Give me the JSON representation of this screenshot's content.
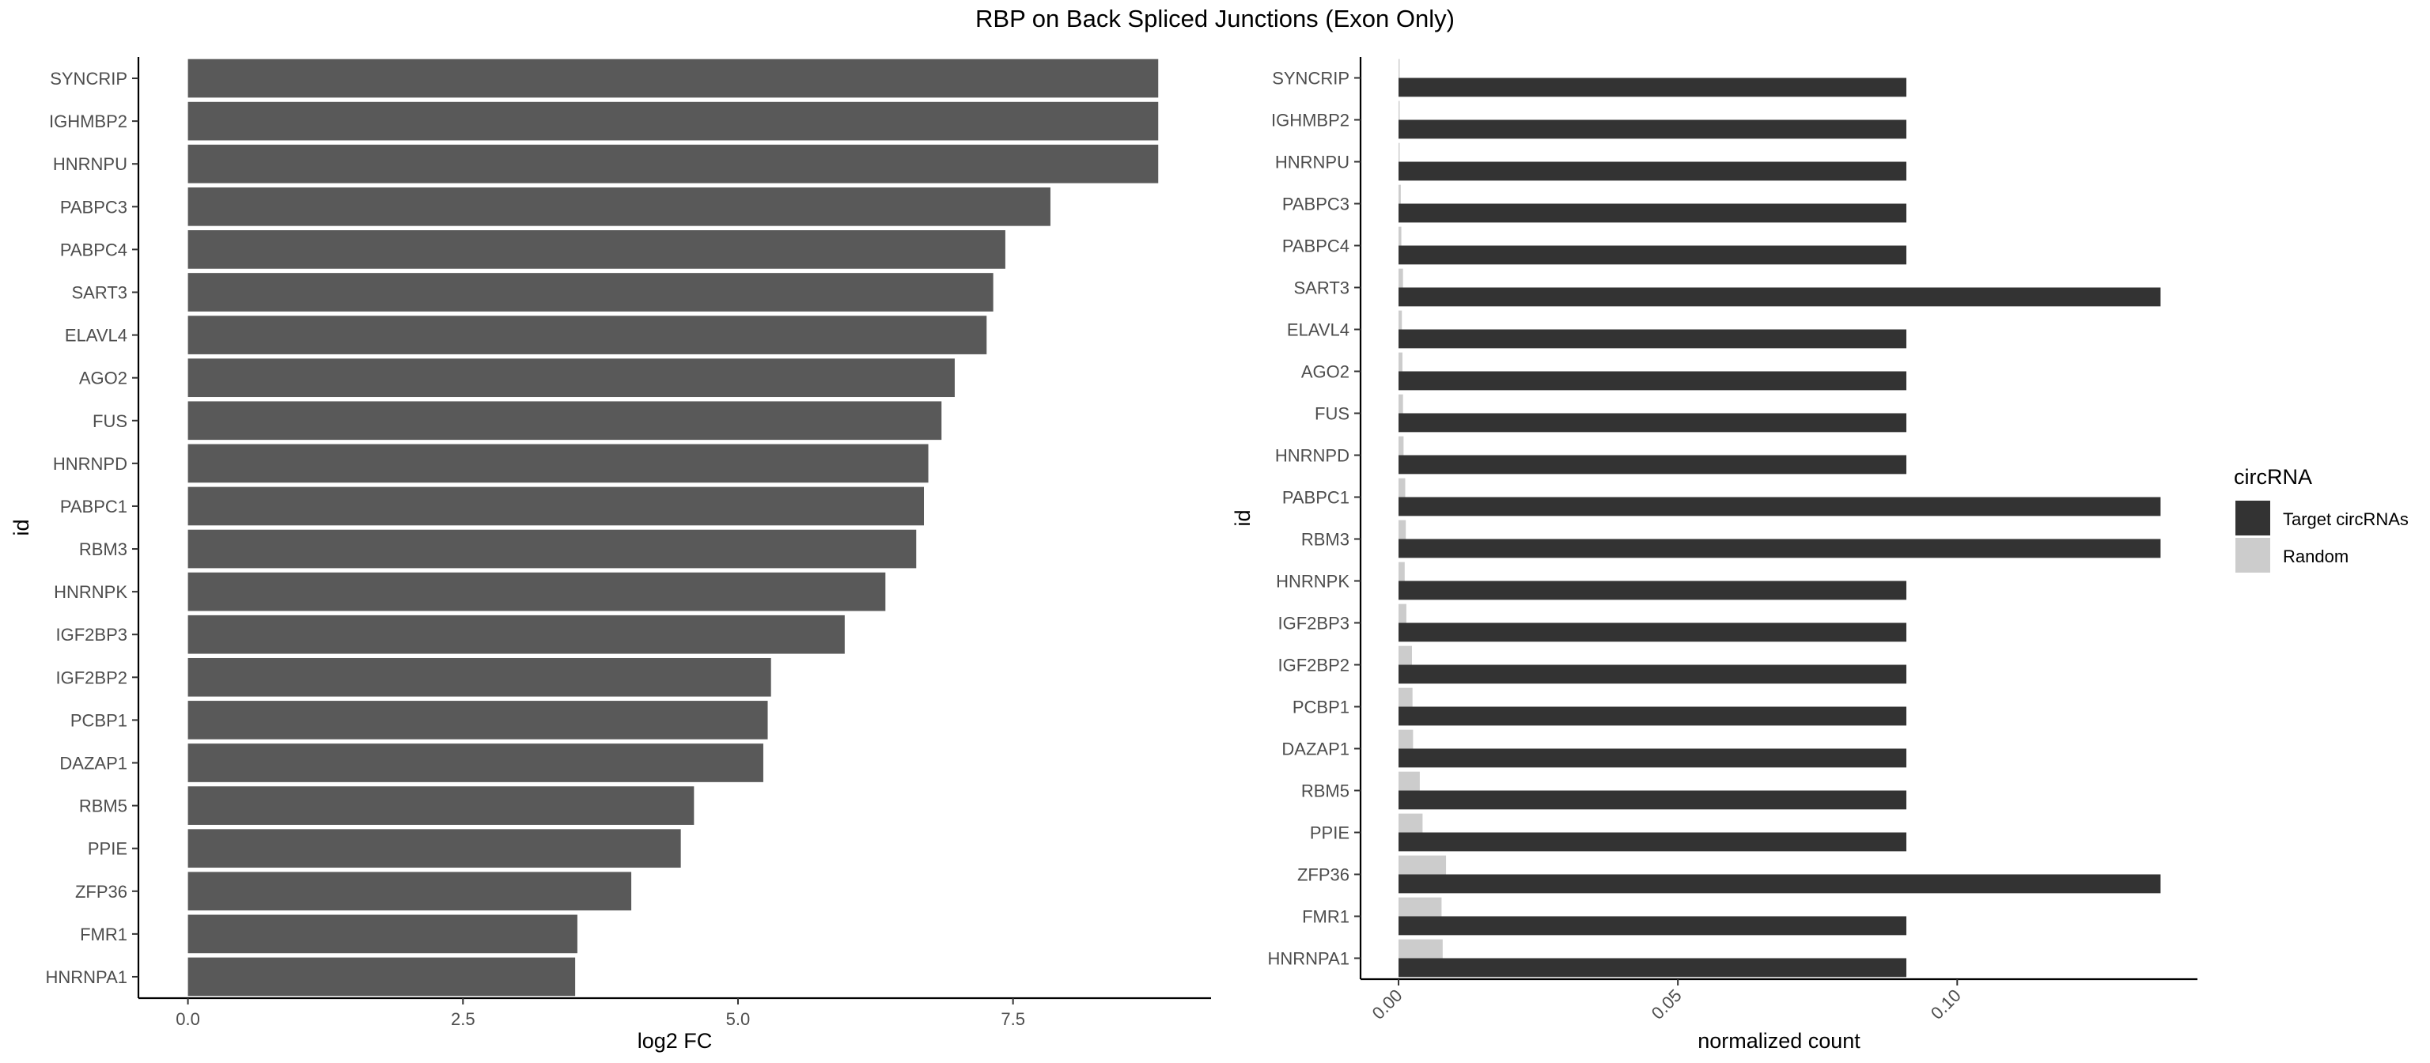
{
  "title": "RBP on Back Spliced Junctions (Exon Only)",
  "colors": {
    "fc_bar": "#595959",
    "target": "#333333",
    "random": "#cccccc",
    "axis": "#000000",
    "tick_text": "#4d4d4d"
  },
  "chart_data": [
    {
      "type": "bar",
      "orientation": "horizontal",
      "xlabel": "log2 FC",
      "ylabel": "id",
      "xlim": [
        -0.45,
        9.3
      ],
      "xticks": [
        0.0,
        2.5,
        5.0,
        7.5
      ],
      "xtick_labels": [
        "0.0",
        "2.5",
        "5.0",
        "7.5"
      ],
      "grid": false,
      "categories": [
        "SYNCRIP",
        "IGHMBP2",
        "HNRNPU",
        "PABPC3",
        "PABPC4",
        "SART3",
        "ELAVL4",
        "AGO2",
        "FUS",
        "HNRNPD",
        "PABPC1",
        "RBM3",
        "HNRNPK",
        "IGF2BP3",
        "IGF2BP2",
        "PCBP1",
        "DAZAP1",
        "RBM5",
        "PPIE",
        "ZFP36",
        "FMR1",
        "HNRNPA1"
      ],
      "values": [
        8.82,
        8.82,
        8.82,
        7.84,
        7.43,
        7.32,
        7.26,
        6.97,
        6.85,
        6.73,
        6.69,
        6.62,
        6.34,
        5.97,
        5.3,
        5.27,
        5.23,
        4.6,
        4.48,
        4.03,
        3.54,
        3.52
      ]
    },
    {
      "type": "bar",
      "orientation": "horizontal",
      "grouped": true,
      "xlabel": "normalized count",
      "ylabel": "id",
      "xlim": [
        -0.0068,
        0.143
      ],
      "xticks": [
        0.0,
        0.05,
        0.1
      ],
      "xtick_labels": [
        "0.00",
        "0.05",
        "0.10"
      ],
      "grid": false,
      "legend_title": "circRNA",
      "legend_position": "right",
      "categories": [
        "SYNCRIP",
        "IGHMBP2",
        "HNRNPU",
        "PABPC3",
        "PABPC4",
        "SART3",
        "ELAVL4",
        "AGO2",
        "FUS",
        "HNRNPD",
        "PABPC1",
        "RBM3",
        "HNRNPK",
        "IGF2BP3",
        "IGF2BP2",
        "PCBP1",
        "DAZAP1",
        "RBM5",
        "PPIE",
        "ZFP36",
        "FMR1",
        "HNRNPA1"
      ],
      "series": [
        {
          "name": "Target circRNAs",
          "values": [
            0.0909,
            0.0909,
            0.0909,
            0.0909,
            0.0909,
            0.1364,
            0.0909,
            0.0909,
            0.0909,
            0.0909,
            0.1364,
            0.1364,
            0.0909,
            0.0909,
            0.0909,
            0.0909,
            0.0909,
            0.0909,
            0.0909,
            0.1364,
            0.0909,
            0.0909
          ]
        },
        {
          "name": "Random",
          "values": [
            0.0002,
            0.0002,
            0.0002,
            0.0004,
            0.0005,
            0.0008,
            0.0006,
            0.0007,
            0.0008,
            0.0009,
            0.0012,
            0.0013,
            0.0011,
            0.0014,
            0.0024,
            0.0025,
            0.0026,
            0.0038,
            0.0043,
            0.0085,
            0.0077,
            0.0079
          ]
        }
      ]
    }
  ]
}
